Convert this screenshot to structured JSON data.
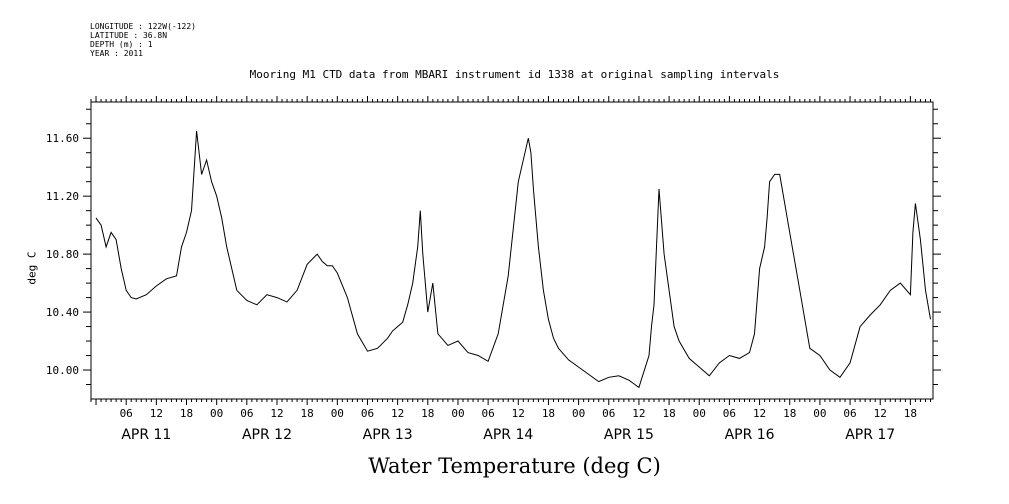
{
  "metadata": {
    "longitude": "LONGITUDE : 122W(-122)",
    "latitude": "LATITUDE : 36.8N",
    "depth": "DEPTH (m) : 1",
    "year": "YEAR : 2011"
  },
  "chart_data": {
    "type": "line",
    "title": "Mooring M1 CTD data from MBARI instrument id 1338 at original sampling intervals",
    "xlabel": "Water Temperature (deg C)",
    "ylabel": "deg C",
    "ylim": [
      9.8,
      11.85
    ],
    "yticks": [
      10.0,
      10.4,
      10.8,
      11.2,
      11.6
    ],
    "ytick_labels": [
      "10.00",
      "10.40",
      "10.80",
      "11.20",
      "11.60"
    ],
    "xlim_hours": [
      -1,
      166.5
    ],
    "hour_tick_labels": [
      "06",
      "12",
      "18",
      "00"
    ],
    "days": [
      "APR 11",
      "APR 12",
      "APR 13",
      "APR 14",
      "APR 15",
      "APR 16",
      "APR 17"
    ],
    "grid": false,
    "series": [
      {
        "x_hours": [
          0,
          1,
          2,
          3,
          4,
          5,
          6,
          7,
          8,
          10,
          12,
          14,
          16,
          16.5,
          17,
          18,
          19,
          20,
          21,
          22,
          23,
          24,
          25,
          26,
          28,
          30,
          32,
          34,
          36,
          38,
          40,
          42,
          44,
          45,
          46,
          47,
          48,
          50,
          52,
          54,
          56,
          58,
          59,
          60,
          61,
          62,
          63,
          64,
          64.5,
          65,
          66,
          67,
          68,
          70,
          72,
          74,
          76,
          78,
          80,
          82,
          84,
          86,
          86.5,
          87,
          88,
          89,
          90,
          91,
          92,
          94,
          96,
          98,
          100,
          102,
          104,
          106,
          108,
          110,
          110.5,
          111,
          112,
          113,
          114,
          115,
          116,
          118,
          120,
          122,
          124,
          126,
          128,
          130,
          131,
          132,
          133,
          133.5,
          134,
          135,
          136,
          138,
          140,
          142,
          144,
          146,
          148,
          150,
          152,
          154,
          156,
          158,
          160,
          162,
          162.5,
          163,
          164,
          165,
          166
        ],
        "y": [
          11.05,
          11.0,
          10.85,
          10.95,
          10.9,
          10.7,
          10.55,
          10.5,
          10.49,
          10.52,
          10.58,
          10.63,
          10.65,
          10.75,
          10.85,
          10.95,
          11.1,
          11.65,
          11.35,
          11.45,
          11.3,
          11.2,
          11.05,
          10.85,
          10.55,
          10.48,
          10.45,
          10.52,
          10.5,
          10.47,
          10.55,
          10.73,
          10.8,
          10.75,
          10.72,
          10.72,
          10.67,
          10.5,
          10.25,
          10.13,
          10.15,
          10.22,
          10.27,
          10.3,
          10.33,
          10.45,
          10.6,
          10.85,
          11.1,
          10.8,
          10.4,
          10.6,
          10.25,
          10.17,
          10.2,
          10.12,
          10.1,
          10.06,
          10.25,
          10.65,
          11.3,
          11.6,
          11.5,
          11.25,
          10.85,
          10.55,
          10.35,
          10.22,
          10.15,
          10.07,
          10.02,
          9.97,
          9.92,
          9.95,
          9.96,
          9.93,
          9.88,
          10.1,
          10.3,
          10.45,
          11.25,
          10.8,
          10.55,
          10.3,
          10.2,
          10.08,
          10.02,
          9.96,
          10.05,
          10.1,
          10.08,
          10.12,
          10.25,
          10.7,
          10.85,
          11.05,
          11.3,
          11.35,
          11.35,
          10.95,
          10.55,
          10.15,
          10.1,
          10.0,
          9.95,
          10.05,
          10.3,
          10.38,
          10.45,
          10.55,
          10.6,
          10.52,
          10.95,
          11.15,
          10.9,
          10.55,
          10.35
        ]
      }
    ]
  }
}
